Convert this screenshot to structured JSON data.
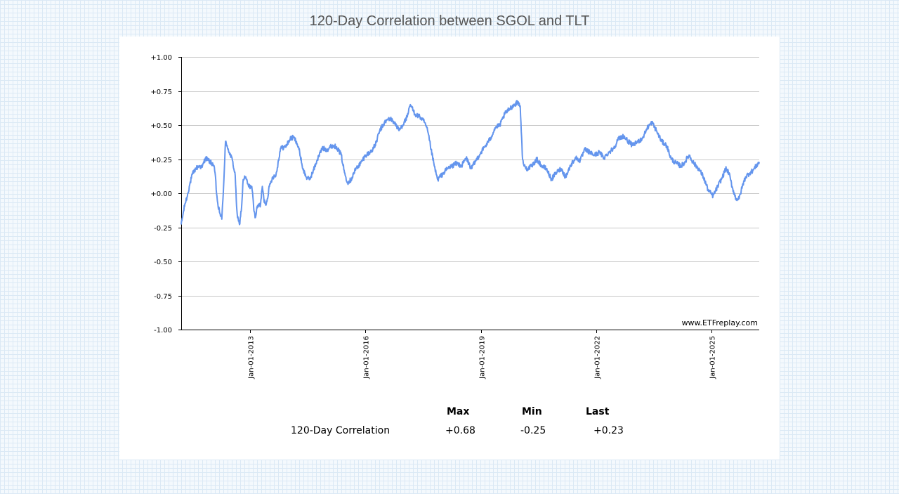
{
  "title": "120-Day Correlation between SGOL and TLT",
  "watermark": "www.ETFreplay.com",
  "colors": {
    "line": "#6495ED",
    "grid": "#c8c8c8",
    "axis": "#000000"
  },
  "chart_data": {
    "type": "line",
    "title": "120-Day Correlation between SGOL and TLT",
    "xlabel": "",
    "ylabel": "",
    "x_range": [
      "2011-03-16",
      "2026-03-30"
    ],
    "ylim": [
      -1.0,
      1.0
    ],
    "grid": true,
    "y_ticks": [
      {
        "value": 1.0,
        "label": "+1.00"
      },
      {
        "value": 0.75,
        "label": "+0.75"
      },
      {
        "value": 0.5,
        "label": "+0.50"
      },
      {
        "value": 0.25,
        "label": "+0.25"
      },
      {
        "value": 0.0,
        "label": "+0.00"
      },
      {
        "value": -0.25,
        "label": "-0.25"
      },
      {
        "value": -0.5,
        "label": "-0.50"
      },
      {
        "value": -0.75,
        "label": "-0.75"
      },
      {
        "value": -1.0,
        "label": "-1.00"
      }
    ],
    "x_ticks": [
      {
        "date": "2013-01-01",
        "label": "Jan-01-2013"
      },
      {
        "date": "2016-01-01",
        "label": "Jan-01-2016"
      },
      {
        "date": "2019-01-01",
        "label": "Jan-01-2019"
      },
      {
        "date": "2022-01-01",
        "label": "Jan-01-2022"
      },
      {
        "date": "2025-01-01",
        "label": "Jan-01-2025"
      }
    ],
    "series": [
      {
        "values": [
          [
            "2011-03-16",
            -0.23
          ],
          [
            "2011-04-01",
            -0.16
          ],
          [
            "2011-04-20",
            -0.08
          ],
          [
            "2011-05-10",
            -0.03
          ],
          [
            "2011-06-01",
            0.05
          ],
          [
            "2011-07-01",
            0.14
          ],
          [
            "2011-08-01",
            0.18
          ],
          [
            "2011-09-01",
            0.2
          ],
          [
            "2011-10-01",
            0.19
          ],
          [
            "2011-11-01",
            0.26
          ],
          [
            "2011-12-01",
            0.24
          ],
          [
            "2012-01-15",
            0.21
          ],
          [
            "2012-02-01",
            0.15
          ],
          [
            "2012-02-15",
            0.0
          ],
          [
            "2012-03-01",
            -0.1
          ],
          [
            "2012-03-20",
            -0.15
          ],
          [
            "2012-04-05",
            -0.19
          ],
          [
            "2012-04-25",
            0.1
          ],
          [
            "2012-05-10",
            0.38
          ],
          [
            "2012-05-25",
            0.35
          ],
          [
            "2012-06-15",
            0.3
          ],
          [
            "2012-07-15",
            0.24
          ],
          [
            "2012-08-10",
            0.13
          ],
          [
            "2012-08-20",
            -0.05
          ],
          [
            "2012-09-01",
            -0.18
          ],
          [
            "2012-09-20",
            -0.23
          ],
          [
            "2012-10-10",
            -0.1
          ],
          [
            "2012-10-25",
            0.1
          ],
          [
            "2012-11-15",
            0.12
          ],
          [
            "2012-12-15",
            0.05
          ],
          [
            "2013-01-15",
            0.05
          ],
          [
            "2013-02-01",
            -0.1
          ],
          [
            "2013-02-15",
            -0.18
          ],
          [
            "2013-03-01",
            -0.12
          ],
          [
            "2013-03-20",
            -0.08
          ],
          [
            "2013-04-05",
            -0.1
          ],
          [
            "2013-04-25",
            0.05
          ],
          [
            "2013-05-10",
            -0.05
          ],
          [
            "2013-06-01",
            -0.08
          ],
          [
            "2013-07-01",
            0.05
          ],
          [
            "2013-08-01",
            0.12
          ],
          [
            "2013-09-01",
            0.13
          ],
          [
            "2013-10-15",
            0.33
          ],
          [
            "2013-12-01",
            0.34
          ],
          [
            "2014-01-15",
            0.4
          ],
          [
            "2014-02-15",
            0.41
          ],
          [
            "2014-03-15",
            0.38
          ],
          [
            "2014-04-15",
            0.3
          ],
          [
            "2014-05-15",
            0.18
          ],
          [
            "2014-06-15",
            0.12
          ],
          [
            "2014-07-15",
            0.1
          ],
          [
            "2014-08-15",
            0.15
          ],
          [
            "2014-10-01",
            0.25
          ],
          [
            "2014-11-15",
            0.33
          ],
          [
            "2015-01-01",
            0.32
          ],
          [
            "2015-02-15",
            0.35
          ],
          [
            "2015-04-01",
            0.34
          ],
          [
            "2015-05-15",
            0.28
          ],
          [
            "2015-06-15",
            0.15
          ],
          [
            "2015-07-15",
            0.08
          ],
          [
            "2015-08-15",
            0.1
          ],
          [
            "2015-10-01",
            0.18
          ],
          [
            "2015-11-15",
            0.22
          ],
          [
            "2016-01-01",
            0.28
          ],
          [
            "2016-02-15",
            0.3
          ],
          [
            "2016-04-01",
            0.35
          ],
          [
            "2016-05-15",
            0.46
          ],
          [
            "2016-07-01",
            0.52
          ],
          [
            "2016-08-15",
            0.55
          ],
          [
            "2016-10-01",
            0.52
          ],
          [
            "2016-11-15",
            0.46
          ],
          [
            "2017-01-01",
            0.52
          ],
          [
            "2017-02-01",
            0.56
          ],
          [
            "2017-03-01",
            0.65
          ],
          [
            "2017-04-15",
            0.58
          ],
          [
            "2017-06-01",
            0.56
          ],
          [
            "2017-07-15",
            0.52
          ],
          [
            "2017-08-15",
            0.45
          ],
          [
            "2017-09-15",
            0.32
          ],
          [
            "2017-10-15",
            0.2
          ],
          [
            "2017-11-15",
            0.1
          ],
          [
            "2018-01-01",
            0.14
          ],
          [
            "2018-02-15",
            0.18
          ],
          [
            "2018-04-01",
            0.2
          ],
          [
            "2018-05-15",
            0.22
          ],
          [
            "2018-07-01",
            0.2
          ],
          [
            "2018-08-15",
            0.26
          ],
          [
            "2018-10-01",
            0.18
          ],
          [
            "2018-11-15",
            0.24
          ],
          [
            "2019-01-01",
            0.3
          ],
          [
            "2019-02-15",
            0.35
          ],
          [
            "2019-04-01",
            0.4
          ],
          [
            "2019-05-15",
            0.48
          ],
          [
            "2019-07-01",
            0.5
          ],
          [
            "2019-08-15",
            0.58
          ],
          [
            "2019-10-01",
            0.62
          ],
          [
            "2019-11-15",
            0.65
          ],
          [
            "2019-12-20",
            0.67
          ],
          [
            "2020-01-10",
            0.64
          ],
          [
            "2020-01-20",
            0.45
          ],
          [
            "2020-02-01",
            0.25
          ],
          [
            "2020-02-15",
            0.2
          ],
          [
            "2020-03-15",
            0.18
          ],
          [
            "2020-05-01",
            0.2
          ],
          [
            "2020-06-15",
            0.25
          ],
          [
            "2020-08-01",
            0.2
          ],
          [
            "2020-09-15",
            0.18
          ],
          [
            "2020-11-01",
            0.1
          ],
          [
            "2020-12-15",
            0.15
          ],
          [
            "2021-02-01",
            0.18
          ],
          [
            "2021-03-15",
            0.12
          ],
          [
            "2021-05-01",
            0.2
          ],
          [
            "2021-06-15",
            0.26
          ],
          [
            "2021-08-01",
            0.24
          ],
          [
            "2021-09-15",
            0.32
          ],
          [
            "2021-11-01",
            0.3
          ],
          [
            "2021-12-15",
            0.28
          ],
          [
            "2022-02-01",
            0.3
          ],
          [
            "2022-03-15",
            0.26
          ],
          [
            "2022-05-01",
            0.3
          ],
          [
            "2022-06-15",
            0.33
          ],
          [
            "2022-08-01",
            0.4
          ],
          [
            "2022-09-15",
            0.42
          ],
          [
            "2022-11-01",
            0.38
          ],
          [
            "2022-12-15",
            0.35
          ],
          [
            "2023-02-01",
            0.38
          ],
          [
            "2023-03-15",
            0.4
          ],
          [
            "2023-05-01",
            0.48
          ],
          [
            "2023-06-15",
            0.52
          ],
          [
            "2023-08-01",
            0.45
          ],
          [
            "2023-09-15",
            0.38
          ],
          [
            "2023-11-01",
            0.35
          ],
          [
            "2023-12-15",
            0.25
          ],
          [
            "2024-02-01",
            0.22
          ],
          [
            "2024-03-15",
            0.2
          ],
          [
            "2024-04-15",
            0.22
          ],
          [
            "2024-06-01",
            0.28
          ],
          [
            "2024-07-15",
            0.22
          ],
          [
            "2024-09-01",
            0.18
          ],
          [
            "2024-10-15",
            0.12
          ],
          [
            "2024-12-01",
            0.02
          ],
          [
            "2025-01-15",
            -0.02
          ],
          [
            "2025-03-01",
            0.05
          ],
          [
            "2025-04-15",
            0.12
          ],
          [
            "2025-05-15",
            0.18
          ],
          [
            "2025-06-15",
            0.15
          ],
          [
            "2025-07-15",
            0.05
          ],
          [
            "2025-08-20",
            -0.04
          ],
          [
            "2025-09-20",
            -0.04
          ],
          [
            "2025-10-20",
            0.05
          ],
          [
            "2025-11-20",
            0.12
          ],
          [
            "2026-01-01",
            0.15
          ],
          [
            "2026-02-01",
            0.17
          ],
          [
            "2026-03-01",
            0.2
          ],
          [
            "2026-03-30",
            0.23
          ]
        ]
      }
    ]
  },
  "stats": {
    "headers": [
      "Max",
      "Min",
      "Last"
    ],
    "rows": [
      {
        "label": "120-Day Correlation",
        "max": "+0.68",
        "min": "-0.25",
        "last": "+0.23"
      }
    ]
  }
}
